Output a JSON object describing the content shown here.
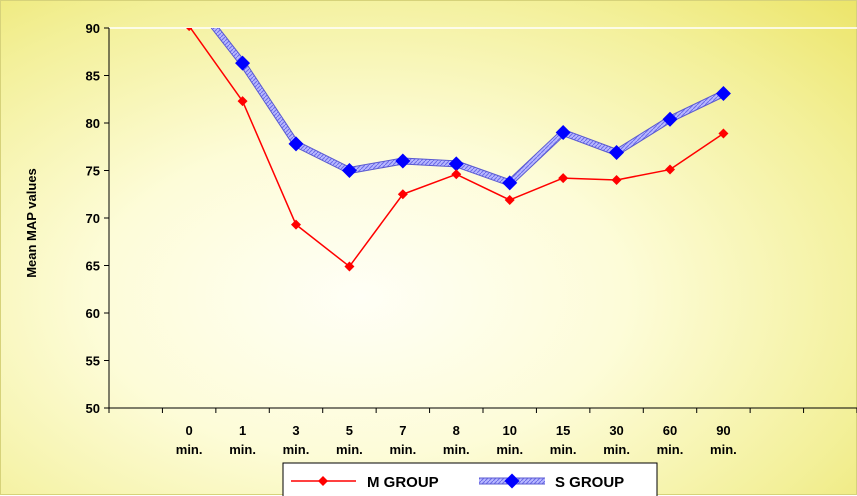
{
  "chart_data": {
    "type": "line",
    "categories": [
      [
        "0",
        "min."
      ],
      [
        "1",
        "min."
      ],
      [
        "3",
        "min."
      ],
      [
        "5",
        "min."
      ],
      [
        "7",
        "min."
      ],
      [
        "8",
        "min."
      ],
      [
        "10",
        "min."
      ],
      [
        "15",
        "min."
      ],
      [
        "30",
        "min."
      ],
      [
        "60",
        "min."
      ],
      [
        "90",
        "min."
      ]
    ],
    "series": [
      {
        "name": "M GROUP",
        "color": "#ff0000",
        "marker": "diamond-small",
        "values": [
          90.2,
          82.3,
          69.3,
          64.9,
          72.5,
          74.6,
          71.9,
          74.2,
          74.0,
          75.1,
          78.9
        ]
      },
      {
        "name": "S GROUP",
        "color": "#0000ff",
        "marker": "diamond-large",
        "values": [
          93.5,
          86.3,
          77.8,
          75.0,
          76.0,
          75.7,
          73.7,
          79.0,
          76.9,
          80.4,
          83.1
        ]
      }
    ],
    "title": "",
    "xlabel": "",
    "ylabel": "Mean MAP values",
    "ylim": [
      50,
      90
    ],
    "yticks": [
      "50",
      "55",
      "60",
      "65",
      "70",
      "75",
      "80",
      "85",
      "90"
    ],
    "grid": "horizontal-top-only",
    "legend_position": "bottom-center",
    "empty_category_slots": "one before first and two after last"
  }
}
